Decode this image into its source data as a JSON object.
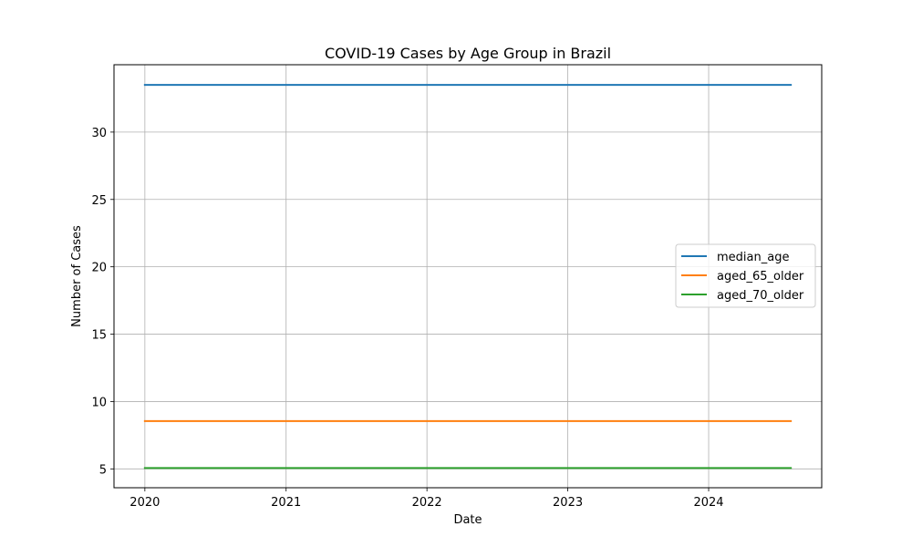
{
  "chart_data": {
    "type": "line",
    "title": "COVID-19 Cases by Age Group in Brazil",
    "xlabel": "Date",
    "ylabel": "Number of Cases",
    "x_start": "2020-01-01",
    "x_end": "2024-08-01",
    "xlim": [
      "2019-10-13",
      "2024-10-20"
    ],
    "ylim": [
      3.6,
      35.0
    ],
    "x_ticks": [
      "2020",
      "2021",
      "2022",
      "2023",
      "2024"
    ],
    "y_ticks": [
      5,
      10,
      15,
      20,
      25,
      30
    ],
    "grid": true,
    "legend_position": "center-right",
    "series": [
      {
        "name": "median_age",
        "color": "#1f77b4",
        "values": [
          33.5,
          33.5
        ]
      },
      {
        "name": "aged_65_older",
        "color": "#ff7f0e",
        "values": [
          8.552,
          8.552
        ]
      },
      {
        "name": "aged_70_older",
        "color": "#2ca02c",
        "values": [
          5.06,
          5.06
        ]
      }
    ]
  }
}
